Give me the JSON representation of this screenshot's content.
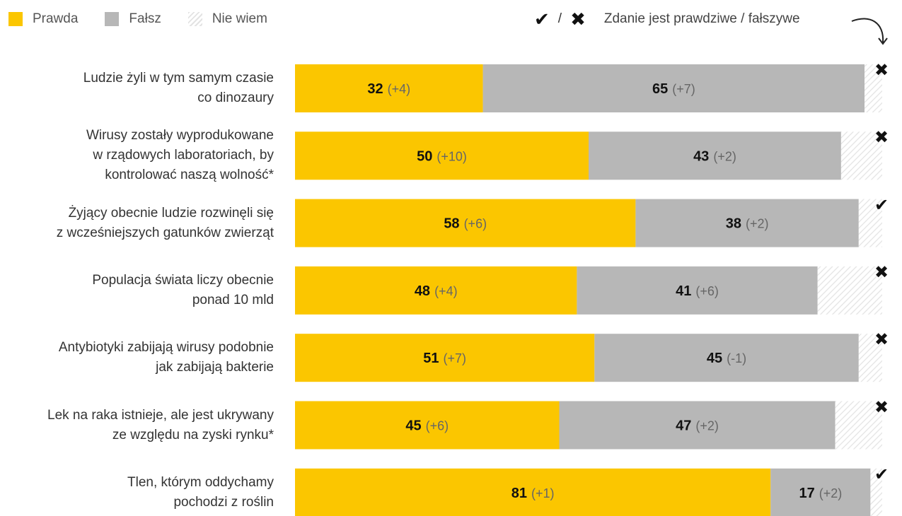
{
  "legend": {
    "yes_label": "Prawda",
    "no_label": "Fałsz",
    "unknown_label": "Nie wiem",
    "check_symbol": "✔",
    "slash": "/",
    "cross_symbol": "✖",
    "marks_description": "Zdanie jest prawdziwe / fałszywe"
  },
  "colors": {
    "yes": "#fbc600",
    "no": "#b7b7b7",
    "unknown_hatch": "#e3e3e3"
  },
  "chart_data": {
    "type": "bar",
    "orientation": "horizontal",
    "stacked": true,
    "xlim": [
      0,
      100
    ],
    "categories": [
      "Ludzie żyli w tym samym czasie co dinozaury",
      "Wirusy zostały wyprodukowane w rządowych laboratoriach, by kontrolować naszą wolność*",
      "Żyjący obecnie ludzie rozwinęli się z wcześniejszych gatunków zwierząt",
      "Populacja świata liczy obecnie ponad 10 mld",
      "Antybiotyki zabijają wirusy podobnie jak zabijają bakterie",
      "Lek na raka istnieje, ale jest ukrywany ze względu na zyski rynku*",
      "Tlen, którym oddychamy pochodzi z roślin"
    ],
    "category_lines": [
      [
        "Ludzie żyli w tym samym czasie",
        "co dinozaury"
      ],
      [
        "Wirusy zostały wyprodukowane",
        "w rządowych laboratoriach, by",
        "kontrolować naszą wolność*"
      ],
      [
        "Żyjący obecnie ludzie rozwinęli się",
        "z wcześniejszych gatunków zwierząt"
      ],
      [
        "Populacja świata liczy obecnie",
        "ponad 10 mld"
      ],
      [
        "Antybiotyki zabijają wirusy podobnie",
        "jak zabijają bakterie"
      ],
      [
        "Lek na raka istnieje, ale jest ukrywany",
        "ze względu na zyski rynku*"
      ],
      [
        "Tlen, którym oddychamy",
        "pochodzi z roślin"
      ]
    ],
    "series": [
      {
        "name": "Prawda",
        "values": [
          32,
          50,
          58,
          48,
          51,
          45,
          81
        ],
        "changes": [
          "(+4)",
          "(+10)",
          "(+6)",
          "(+4)",
          "(+7)",
          "(+6)",
          "(+1)"
        ]
      },
      {
        "name": "Fałsz",
        "values": [
          65,
          43,
          38,
          41,
          45,
          47,
          17
        ],
        "changes": [
          "(+7)",
          "(+2)",
          "(+2)",
          "(+6)",
          "(-1)",
          "(+2)",
          "(+2)"
        ]
      },
      {
        "name": "Nie wiem",
        "values": [
          3,
          7,
          4,
          11,
          4,
          8,
          2
        ]
      }
    ],
    "statement_true": [
      false,
      false,
      true,
      false,
      false,
      false,
      true
    ]
  }
}
